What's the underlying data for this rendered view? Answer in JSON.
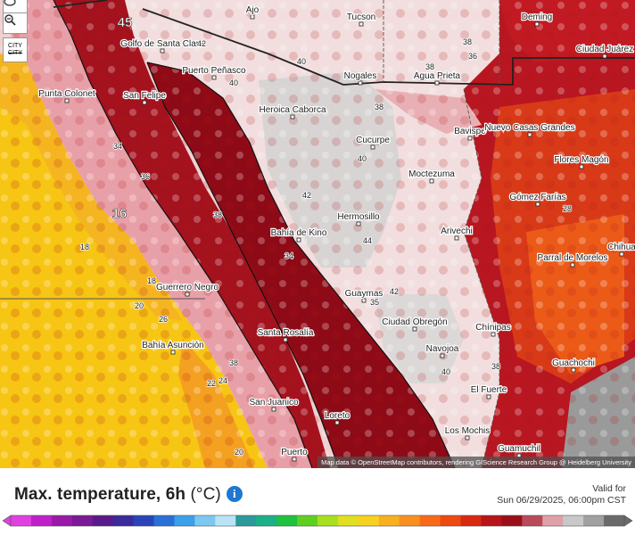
{
  "map": {
    "attribution": "Map data © OpenStreetMap contributors, rendering GIScience Research Group @ Heidelberg University",
    "city_toggle_label": "CITY",
    "places": [
      {
        "name": "Ajo",
        "pos": "ajo"
      },
      {
        "name": "Tucson",
        "pos": "tucson"
      },
      {
        "name": "Deming",
        "pos": "deming"
      },
      {
        "name": "Ciudad Juárez",
        "pos": "juarez"
      },
      {
        "name": "Golfo de Santa Clara",
        "pos": "golfo"
      },
      {
        "name": "Puerto Peñasco",
        "pos": "penasco"
      },
      {
        "name": "Punta Colonet",
        "pos": "colonet"
      },
      {
        "name": "San Felipe",
        "pos": "felipe"
      },
      {
        "name": "Nogales",
        "pos": "nogales"
      },
      {
        "name": "Agua Prieta",
        "pos": "aguaprieta"
      },
      {
        "name": "Heroica Caborca",
        "pos": "caborca"
      },
      {
        "name": "Bavispe",
        "pos": "bavispe"
      },
      {
        "name": "Nuevo Casas Grandes",
        "pos": "casas"
      },
      {
        "name": "Cucurpe",
        "pos": "cucurpe"
      },
      {
        "name": "Flores Magón",
        "pos": "flores"
      },
      {
        "name": "Moctezuma",
        "pos": "moctezuma"
      },
      {
        "name": "Gómez Farías",
        "pos": "gomez"
      },
      {
        "name": "Hermosillo",
        "pos": "hermosillo"
      },
      {
        "name": "Bahía de Kino",
        "pos": "kino"
      },
      {
        "name": "Arivechi",
        "pos": "arivechi"
      },
      {
        "name": "Chihua",
        "pos": "chihua"
      },
      {
        "name": "Parral de Morelos",
        "pos": "parral"
      },
      {
        "name": "Guerrero Negro",
        "pos": "guerrero"
      },
      {
        "name": "Guaymas",
        "pos": "guaymas"
      },
      {
        "name": "Ciudad Obregón",
        "pos": "obregon"
      },
      {
        "name": "Santa Rosalía",
        "pos": "rosalia"
      },
      {
        "name": "Chínipas",
        "pos": "chinipas"
      },
      {
        "name": "Bahía Asunción",
        "pos": "asuncion"
      },
      {
        "name": "Navojoa",
        "pos": "navojoa"
      },
      {
        "name": "Guachochi",
        "pos": "guachochi"
      },
      {
        "name": "El Fuerte",
        "pos": "fuerte"
      },
      {
        "name": "San Juanico",
        "pos": "juanico"
      },
      {
        "name": "Loreto",
        "pos": "loreto"
      },
      {
        "name": "Los Mochis",
        "pos": "mochis"
      },
      {
        "name": "Guamuchil",
        "pos": "guamuchil"
      },
      {
        "name": "Puerto",
        "pos": "puerto"
      }
    ],
    "values": [
      {
        "v": "45",
        "pos": "v45",
        "big": true
      },
      {
        "v": "16",
        "pos": "v16",
        "big": true
      },
      {
        "v": "42",
        "pos": "v42a"
      },
      {
        "v": "40",
        "pos": "v40a"
      },
      {
        "v": "40",
        "pos": "v40b"
      },
      {
        "v": "38",
        "pos": "v38a"
      },
      {
        "v": "38",
        "pos": "v38b"
      },
      {
        "v": "36",
        "pos": "v36a"
      },
      {
        "v": "38",
        "pos": "v38c"
      },
      {
        "v": "34",
        "pos": "v34a"
      },
      {
        "v": "36",
        "pos": "v36b"
      },
      {
        "v": "40",
        "pos": "v40c"
      },
      {
        "v": "42",
        "pos": "v42b"
      },
      {
        "v": "44",
        "pos": "v44"
      },
      {
        "v": "28",
        "pos": "v28a"
      },
      {
        "v": "18",
        "pos": "v18a"
      },
      {
        "v": "38",
        "pos": "v38d"
      },
      {
        "v": "34",
        "pos": "v34b"
      },
      {
        "v": "18",
        "pos": "v18b"
      },
      {
        "v": "20",
        "pos": "v20a"
      },
      {
        "v": "26",
        "pos": "v26"
      },
      {
        "v": "42",
        "pos": "v42c"
      },
      {
        "v": "35",
        "pos": "v35"
      },
      {
        "v": "38",
        "pos": "v38e"
      },
      {
        "v": "22",
        "pos": "v22"
      },
      {
        "v": "24",
        "pos": "v24"
      },
      {
        "v": "40",
        "pos": "v40d"
      },
      {
        "v": "20",
        "pos": "v20b"
      },
      {
        "v": "38",
        "pos": "v38f"
      }
    ]
  },
  "legend": {
    "title": "Max. temperature, 6h",
    "unit": "(°C)",
    "valid_label": "Valid for",
    "valid_time": "Sun 06/29/2025, 06:00pm CST",
    "colors": [
      "#e040e0",
      "#c020c8",
      "#9a1aa8",
      "#7a1a96",
      "#5a1a8a",
      "#3a2a9a",
      "#2a44b8",
      "#2a70d8",
      "#3aa0e8",
      "#7cc8f0",
      "#b8e4f6",
      "#2a9a9a",
      "#1ab088",
      "#20c040",
      "#60d020",
      "#a8e020",
      "#e0e020",
      "#f8d020",
      "#f8b020",
      "#f89020",
      "#f86a18",
      "#ec4a10",
      "#d82a10",
      "#b8141a",
      "#9a0e18",
      "#b84a5a",
      "#e0a0a8",
      "#c8c8c8",
      "#a0a0a0",
      "#6a6a6a"
    ]
  }
}
